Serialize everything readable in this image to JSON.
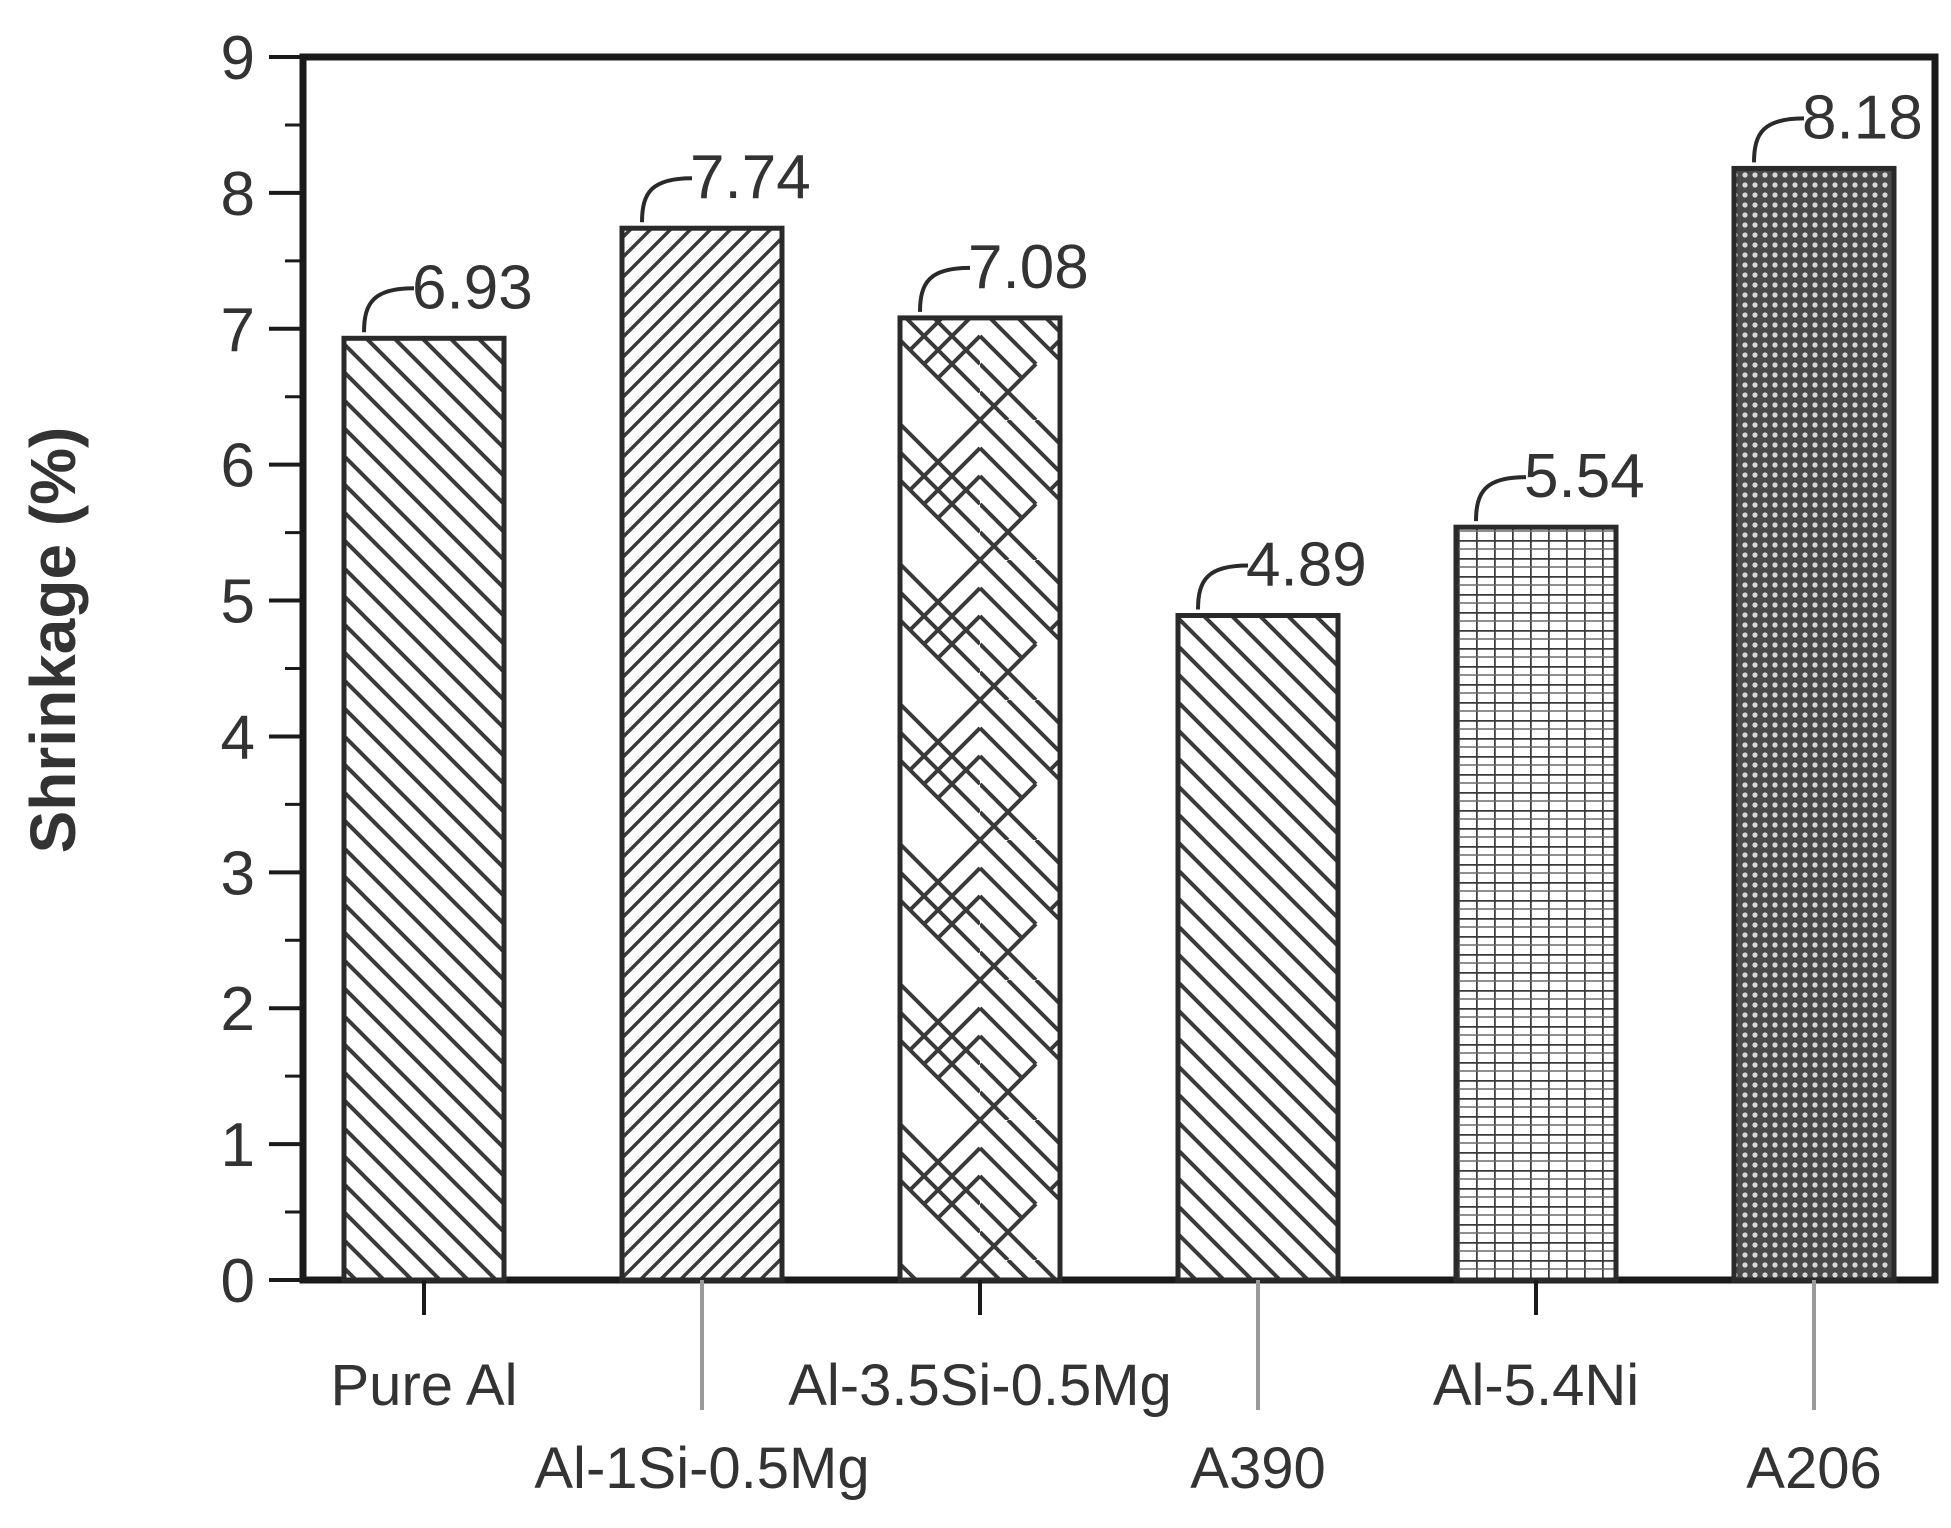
{
  "chart_data": {
    "type": "bar",
    "ylabel": "Shrinkage (%)",
    "xlabel": "",
    "ylim": [
      0,
      9
    ],
    "yticks": [
      0,
      1,
      2,
      3,
      4,
      5,
      6,
      7,
      8,
      9
    ],
    "categories": [
      "Pure Al",
      "Al-1Si-0.5Mg",
      "Al-3.5Si-0.5Mg",
      "A390",
      "Al-5.4Ni",
      "A206"
    ],
    "values": [
      6.93,
      7.74,
      7.08,
      4.89,
      5.54,
      8.18
    ],
    "data_labels": [
      "6.93",
      "7.74",
      "7.08",
      "4.89",
      "5.54",
      "8.18"
    ],
    "patterns": [
      "diagonal-back",
      "diagonal-dense",
      "herringbone",
      "diagonal-back",
      "grid",
      "crosshatch-dense"
    ],
    "colors": {
      "axis": "#1a1a1a",
      "bar_edge": "#2a2a2a",
      "hatch": "#3a3a3a",
      "text": "#333333"
    },
    "grid": false,
    "legend": "none"
  }
}
